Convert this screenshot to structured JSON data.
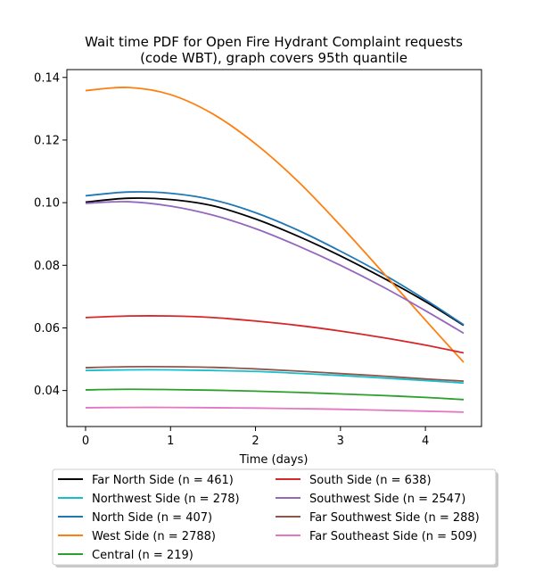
{
  "chart_data": {
    "type": "line",
    "title": [
      "Wait time PDF for Open Fire Hydrant Complaint  requests",
      "(code WBT), graph covers 95th quantile"
    ],
    "xlabel": "Time (days)",
    "ylabel": "",
    "xlim": [
      -0.22,
      4.66
    ],
    "ylim": [
      0.0285,
      0.1425
    ],
    "xticks": [
      0,
      1,
      2,
      3,
      4
    ],
    "yticks": [
      0.04,
      0.06,
      0.08,
      0.1,
      0.12,
      0.14
    ],
    "ytick_labels": [
      "0.04",
      "0.06",
      "0.08",
      "0.10",
      "0.12",
      "0.14"
    ],
    "legend_position": "below",
    "x": [
      0,
      0.5,
      1,
      1.5,
      2,
      2.5,
      3,
      3.5,
      4,
      4.45
    ],
    "series": [
      {
        "name": "Far North Side (n = 461)",
        "color": "#000000",
        "values": [
          0.1002,
          0.1014,
          0.101,
          0.099,
          0.0948,
          0.0893,
          0.083,
          0.076,
          0.0684,
          0.0608
        ]
      },
      {
        "name": "Northwest Side (n = 278)",
        "color": "#17becf",
        "values": [
          0.0464,
          0.0466,
          0.0466,
          0.0464,
          0.0461,
          0.0455,
          0.0448,
          0.044,
          0.0432,
          0.0424
        ]
      },
      {
        "name": "North Side (n = 407)",
        "color": "#1f77b4",
        "values": [
          0.1022,
          0.1034,
          0.103,
          0.1009,
          0.0968,
          0.0912,
          0.0845,
          0.0772,
          0.069,
          0.061
        ]
      },
      {
        "name": "West Side (n = 2788)",
        "color": "#ff7f0e",
        "values": [
          0.1358,
          0.1368,
          0.1345,
          0.1283,
          0.1188,
          0.1068,
          0.0927,
          0.0777,
          0.0625,
          0.049
        ]
      },
      {
        "name": "Central (n = 219)",
        "color": "#2ca02c",
        "values": [
          0.0402,
          0.0404,
          0.0403,
          0.0401,
          0.0398,
          0.0394,
          0.0389,
          0.0384,
          0.0378,
          0.0371
        ]
      },
      {
        "name": "South Side (n = 638)",
        "color": "#d62728",
        "values": [
          0.0633,
          0.0638,
          0.0638,
          0.0633,
          0.0622,
          0.0608,
          0.059,
          0.0569,
          0.0545,
          0.052
        ]
      },
      {
        "name": "Southwest Side (n = 2547)",
        "color": "#9467bd",
        "values": [
          0.0998,
          0.1003,
          0.0989,
          0.096,
          0.0917,
          0.0862,
          0.08,
          0.0731,
          0.0655,
          0.0583
        ]
      },
      {
        "name": "Far Southwest Side (n = 288)",
        "color": "#8c564b",
        "values": [
          0.0473,
          0.0476,
          0.0476,
          0.0474,
          0.0469,
          0.0462,
          0.0454,
          0.0446,
          0.0437,
          0.043
        ]
      },
      {
        "name": "Far Southeast Side (n = 509)",
        "color": "#e377c2",
        "values": [
          0.0345,
          0.0346,
          0.0346,
          0.0345,
          0.0344,
          0.0342,
          0.034,
          0.0337,
          0.0334,
          0.0331
        ]
      }
    ]
  }
}
